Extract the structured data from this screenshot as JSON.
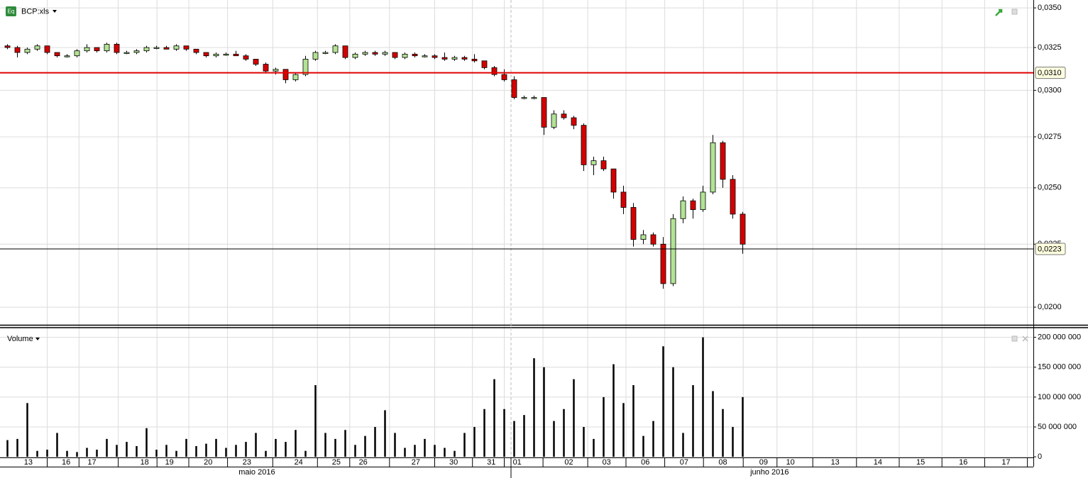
{
  "chart_data": [
    {
      "type": "candlestick",
      "title": "BCP:xls",
      "log_scale": true,
      "grid": true,
      "up_color": "#b2e394",
      "down_color": "#d40000",
      "xlim": [
        -0.75,
        103.25
      ],
      "ylim": [
        0.01935,
        0.03552
      ],
      "yticks": [
        {
          "value": 0.02,
          "label": "0,0200"
        },
        {
          "value": 0.0225,
          "label": "0,0225"
        },
        {
          "value": 0.025,
          "label": "0,0250"
        },
        {
          "value": 0.0275,
          "label": "0,0275"
        },
        {
          "value": 0.03,
          "label": "0,0300"
        },
        {
          "value": 0.0325,
          "label": "0,0325"
        },
        {
          "value": 0.035,
          "label": "0,0350"
        }
      ],
      "reference_lines": [
        {
          "value": 0.031,
          "label": "0,0310",
          "color": "#e00000"
        },
        {
          "value": 0.0223,
          "label": "0,0223",
          "color": "#000000"
        }
      ],
      "open": [
        0.0326,
        0.0325,
        0.0322,
        0.0324,
        0.0326,
        0.0322,
        0.032,
        0.032,
        0.0323,
        0.0325,
        0.0323,
        0.0327,
        0.0322,
        0.0322,
        0.0323,
        0.0325,
        0.0325,
        0.0324,
        0.0326,
        0.0324,
        0.0322,
        0.032,
        0.0321,
        0.0321,
        0.032,
        0.0318,
        0.0315,
        0.0311,
        0.0312,
        0.0306,
        0.0309,
        0.0318,
        0.0322,
        0.0322,
        0.0326,
        0.0319,
        0.0321,
        0.0322,
        0.0321,
        0.0322,
        0.0319,
        0.0321,
        0.032,
        0.032,
        0.0319,
        0.0318,
        0.0319,
        0.0318,
        0.0317,
        0.0313,
        0.0309,
        0.0306,
        0.0296,
        0.0296,
        0.0296,
        0.028,
        0.0287,
        0.0285,
        0.0281,
        0.0261,
        0.0263,
        0.0259,
        0.0248,
        0.0241,
        0.0227,
        0.0229,
        0.0225,
        0.0209,
        0.0236,
        0.0244,
        0.024,
        0.0248,
        0.0272,
        0.0254,
        0.0238
      ],
      "high": [
        0.0327,
        0.0326,
        0.0325,
        0.0327,
        0.0326,
        0.0322,
        0.0321,
        0.0324,
        0.0327,
        0.0325,
        0.0328,
        0.0328,
        0.0323,
        0.0324,
        0.0326,
        0.0326,
        0.0326,
        0.0327,
        0.0326,
        0.0324,
        0.0322,
        0.0322,
        0.0322,
        0.0323,
        0.0321,
        0.0318,
        0.0316,
        0.0313,
        0.0312,
        0.031,
        0.032,
        0.0323,
        0.0323,
        0.0327,
        0.0326,
        0.0322,
        0.0323,
        0.0323,
        0.0323,
        0.0322,
        0.0322,
        0.0322,
        0.0321,
        0.0321,
        0.0322,
        0.032,
        0.032,
        0.0321,
        0.0317,
        0.0314,
        0.0312,
        0.0308,
        0.0297,
        0.0297,
        0.0296,
        0.0289,
        0.0289,
        0.0286,
        0.0282,
        0.0265,
        0.0265,
        0.0259,
        0.0251,
        0.0243,
        0.0231,
        0.023,
        0.0228,
        0.0238,
        0.0246,
        0.0245,
        0.0251,
        0.0276,
        0.0273,
        0.0256,
        0.0239
      ],
      "low": [
        0.0324,
        0.0319,
        0.0321,
        0.0323,
        0.0321,
        0.0319,
        0.0319,
        0.0319,
        0.0322,
        0.0322,
        0.0322,
        0.0321,
        0.0321,
        0.0321,
        0.0322,
        0.0324,
        0.0324,
        0.0323,
        0.0323,
        0.0321,
        0.0319,
        0.0319,
        0.032,
        0.032,
        0.0317,
        0.0314,
        0.031,
        0.0309,
        0.0304,
        0.0305,
        0.0308,
        0.0317,
        0.0321,
        0.0321,
        0.0318,
        0.0318,
        0.032,
        0.032,
        0.032,
        0.0318,
        0.0318,
        0.0319,
        0.0319,
        0.0318,
        0.0317,
        0.0317,
        0.0317,
        0.0316,
        0.0312,
        0.0308,
        0.0305,
        0.0295,
        0.0295,
        0.0295,
        0.0276,
        0.0279,
        0.0284,
        0.0279,
        0.0258,
        0.0256,
        0.0258,
        0.0245,
        0.0238,
        0.0224,
        0.0225,
        0.0224,
        0.0207,
        0.0208,
        0.0234,
        0.0236,
        0.0239,
        0.0247,
        0.025,
        0.0236,
        0.0221
      ],
      "close": [
        0.0325,
        0.0322,
        0.0324,
        0.0326,
        0.0322,
        0.032,
        0.032,
        0.0323,
        0.0325,
        0.0323,
        0.0327,
        0.0322,
        0.0322,
        0.0323,
        0.0325,
        0.0325,
        0.0324,
        0.0326,
        0.0324,
        0.0322,
        0.032,
        0.0321,
        0.0321,
        0.032,
        0.0318,
        0.0315,
        0.0311,
        0.0312,
        0.0306,
        0.0309,
        0.0318,
        0.0322,
        0.0322,
        0.0326,
        0.0319,
        0.0321,
        0.0322,
        0.0321,
        0.0322,
        0.0319,
        0.0321,
        0.032,
        0.032,
        0.0319,
        0.0318,
        0.0319,
        0.0318,
        0.0317,
        0.0313,
        0.0309,
        0.0306,
        0.0296,
        0.0296,
        0.0296,
        0.028,
        0.0287,
        0.0285,
        0.0281,
        0.0261,
        0.0263,
        0.0259,
        0.0248,
        0.0241,
        0.0227,
        0.0229,
        0.0225,
        0.0209,
        0.0236,
        0.0244,
        0.024,
        0.0248,
        0.0272,
        0.0254,
        0.0238,
        0.0225
      ]
    },
    {
      "type": "bar",
      "title": "Volume",
      "color": "#000000",
      "grid": true,
      "xlim": [
        -0.75,
        103.25
      ],
      "ylim": [
        -1000000,
        215000000
      ],
      "yticks": [
        0,
        {
          "value": 50000000,
          "label": "50 000 000"
        },
        {
          "value": 100000000,
          "label": "100 000 000"
        },
        {
          "value": 150000000,
          "label": "150 000 000"
        },
        {
          "value": 200000000,
          "label": "200 000 000"
        }
      ],
      "xticks": [
        {
          "value": 2.1,
          "label": "13"
        },
        {
          "value": 5.9,
          "label": "16"
        },
        {
          "value": 8.5,
          "label": "17"
        },
        {
          "value": 13.8,
          "label": "18"
        },
        {
          "value": 16.3,
          "label": "19"
        },
        {
          "value": 20.2,
          "label": "20"
        },
        {
          "value": 24.1,
          "label": "23"
        },
        {
          "value": 29.3,
          "label": "24"
        },
        {
          "value": 33.1,
          "label": "25"
        },
        {
          "value": 35.8,
          "label": "26"
        },
        {
          "value": 41.1,
          "label": "27"
        },
        {
          "value": 44.9,
          "label": "30"
        },
        {
          "value": 48.7,
          "label": "31"
        },
        {
          "value": 51.3,
          "label": "01"
        },
        {
          "value": 56.5,
          "label": "02"
        },
        {
          "value": 60.3,
          "label": "03"
        },
        {
          "value": 64.2,
          "label": "06"
        },
        {
          "value": 68.1,
          "label": "07"
        },
        {
          "value": 72.0,
          "label": "08"
        },
        {
          "value": 76.1,
          "label": "09"
        },
        {
          "value": 78.8,
          "label": "10"
        },
        {
          "value": 83.3,
          "label": "13"
        },
        {
          "value": 87.6,
          "label": "14"
        },
        {
          "value": 91.9,
          "label": "15"
        },
        {
          "value": 96.2,
          "label": "16"
        },
        {
          "value": 100.5,
          "label": "17"
        }
      ],
      "month_labels": [
        {
          "value": 25.1,
          "label": "maio 2016"
        },
        {
          "value": 76.7,
          "label": "junho 2016"
        }
      ],
      "values": [
        28000000,
        30000000,
        90000000,
        10000000,
        12000000,
        40000000,
        10000000,
        8000000,
        15000000,
        12000000,
        30000000,
        20000000,
        25000000,
        18000000,
        48000000,
        12000000,
        20000000,
        10000000,
        30000000,
        18000000,
        22000000,
        30000000,
        15000000,
        20000000,
        25000000,
        40000000,
        10000000,
        30000000,
        25000000,
        45000000,
        10000000,
        120000000,
        40000000,
        30000000,
        45000000,
        20000000,
        35000000,
        50000000,
        78000000,
        40000000,
        15000000,
        20000000,
        30000000,
        20000000,
        15000000,
        10000000,
        40000000,
        50000000,
        80000000,
        130000000,
        80000000,
        60000000,
        70000000,
        165000000,
        150000000,
        60000000,
        80000000,
        130000000,
        50000000,
        30000000,
        100000000,
        155000000,
        90000000,
        120000000,
        35000000,
        60000000,
        185000000,
        150000000,
        40000000,
        120000000,
        200000000,
        110000000,
        80000000,
        50000000,
        100000000
      ]
    }
  ]
}
